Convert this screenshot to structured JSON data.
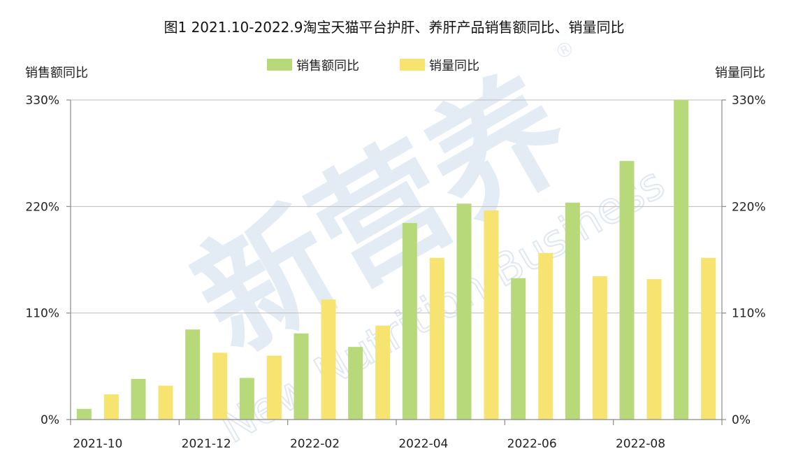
{
  "chart_data": {
    "type": "bar",
    "title": "图1 2021.10-2022.9淘宝天猫平台护肝、养肝产品销售额同比、销量同比",
    "ylabel_left": "销售额同比",
    "ylabel_right": "销量同比",
    "ylim": [
      0,
      330
    ],
    "yticks": [
      0,
      110,
      220,
      330
    ],
    "ytick_labels": [
      "0%",
      "110%",
      "220%",
      "330%"
    ],
    "grid": true,
    "legend_position": "top-center",
    "months": [
      "2021-10",
      "2021-11",
      "2021-12",
      "2022-01",
      "2022-02",
      "2022-03",
      "2022-04",
      "2022-05",
      "2022-06",
      "2022-07",
      "2022-08",
      "2022-09"
    ],
    "x_tick_labels": [
      "2021-10",
      "2021-12",
      "2022-02",
      "2022-04",
      "2022-06",
      "2022-08"
    ],
    "series": [
      {
        "name": "销售额同比",
        "color": "#b7d97a",
        "values": [
          11,
          42,
          93,
          43,
          89,
          75,
          203,
          223,
          146,
          224,
          267,
          330
        ]
      },
      {
        "name": "销量同比",
        "color": "#f7e36f",
        "values": [
          26,
          35,
          69,
          66,
          124,
          97,
          167,
          216,
          172,
          148,
          145,
          167
        ]
      }
    ]
  },
  "watermark": {
    "main": "新营养",
    "sub": "New Nutrition Business",
    "mark": "®"
  }
}
